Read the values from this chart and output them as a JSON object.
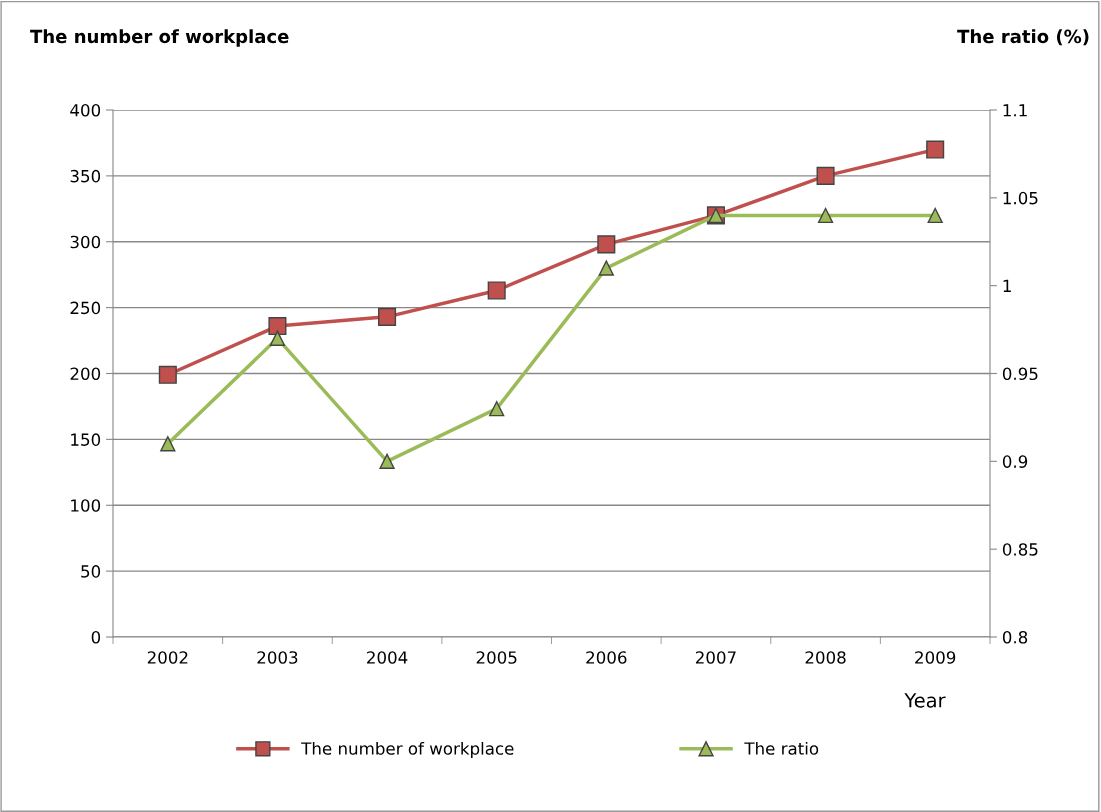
{
  "chart_data": {
    "type": "line",
    "xlabel": "Year",
    "ylabel": "The number of workplace",
    "y2label": "The ratio (%)",
    "categories": [
      "2002",
      "2003",
      "2004",
      "2005",
      "2006",
      "2007",
      "2008",
      "2009"
    ],
    "series": [
      {
        "name": "The number of workplace",
        "color": "#c0504d",
        "marker": "square",
        "values": [
          199,
          236,
          243,
          263,
          298,
          320,
          350,
          370
        ]
      },
      {
        "name": "The ratio",
        "color": "#9bbb59",
        "marker": "triangle",
        "axis": "y2",
        "values": [
          0.91,
          0.97,
          0.9,
          0.93,
          1.01,
          1.04,
          1.04,
          1.04
        ]
      }
    ],
    "ylim": [
      0,
      400
    ],
    "yticks": [
      0,
      50,
      100,
      150,
      200,
      250,
      300,
      350,
      400
    ],
    "y2lim": [
      0.8,
      1.1
    ],
    "y2ticks": [
      {
        "value": 0.8,
        "label": "0.8"
      },
      {
        "value": 0.85,
        "label": "0.85"
      },
      {
        "value": 0.9,
        "label": "0.9"
      },
      {
        "value": 0.95,
        "label": "0.95"
      },
      {
        "value": 1.0,
        "label": "1"
      },
      {
        "value": 1.05,
        "label": "1.05"
      },
      {
        "value": 1.1,
        "label": "1.1"
      }
    ],
    "grid": "y",
    "legend": "bottom",
    "line_style": "solid"
  }
}
